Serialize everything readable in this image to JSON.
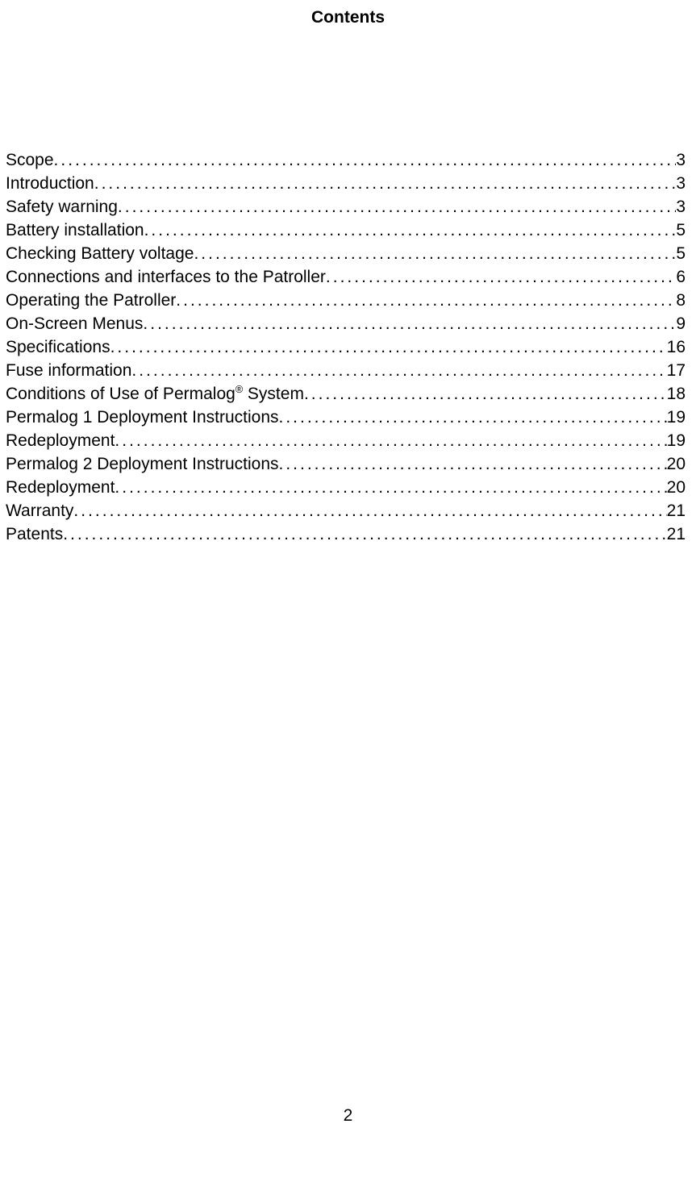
{
  "title": "Contents",
  "entries": [
    {
      "title": "Scope",
      "page": "3",
      "sup": null
    },
    {
      "title": "Introduction ",
      "page": "3",
      "sup": null
    },
    {
      "title": "Safety warning ",
      "page": "3",
      "sup": null
    },
    {
      "title": "Battery installation",
      "page": "5",
      "sup": null
    },
    {
      "title": "Checking Battery voltage ",
      "page": "5",
      "sup": null
    },
    {
      "title": "Connections and interfaces to the Patroller ",
      "page": "6",
      "sup": null
    },
    {
      "title": "Operating the Patroller",
      "page": "8",
      "sup": null
    },
    {
      "title": "On-Screen Menus",
      "page": "9",
      "sup": null
    },
    {
      "title": "Specifications",
      "page": "16",
      "sup": null
    },
    {
      "title": "Fuse information ",
      "page": "17",
      "sup": null
    },
    {
      "title_pre": "Conditions of Use of Permalog",
      "sup": "®",
      "title_post": " System ",
      "page": "18"
    },
    {
      "title": "Permalog 1 Deployment Instructions ",
      "page": "19",
      "sup": null
    },
    {
      "title": "Redeployment",
      "page": "19",
      "sup": null
    },
    {
      "title": "Permalog 2 Deployment Instructions ",
      "page": "20",
      "sup": null
    },
    {
      "title": "Redeployment",
      "page": "20",
      "sup": null
    },
    {
      "title": "Warranty ",
      "page": "21",
      "sup": null
    },
    {
      "title": "Patents",
      "page": "21",
      "sup": null
    }
  ],
  "page_number": "2",
  "colors": {
    "background": "#ffffff",
    "text": "#000000"
  },
  "typography": {
    "title_fontsize": 21,
    "entry_fontsize": 21,
    "line_height": 29,
    "font_family": "Arial"
  }
}
